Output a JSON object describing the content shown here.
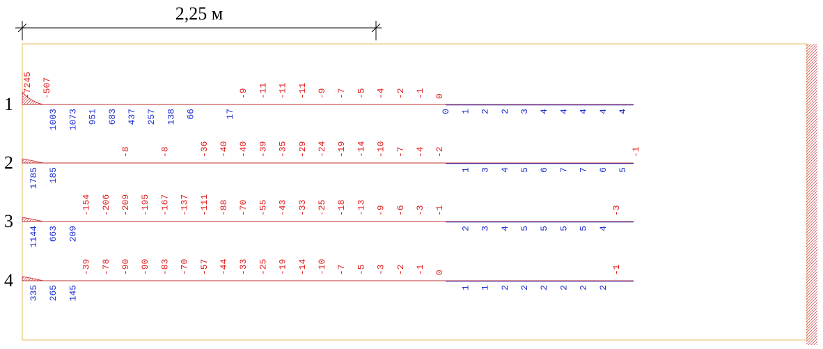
{
  "dimension": {
    "label": "2,25 м"
  },
  "rows": [
    {
      "label": "1",
      "negative": [
        -7245,
        -507,
        null,
        null,
        null,
        null,
        null,
        null,
        null,
        null,
        null,
        -9,
        -11,
        -11,
        -11,
        -9,
        -7,
        -5,
        -4,
        -2,
        -1,
        0,
        null,
        null,
        null,
        null,
        null,
        null,
        null,
        null,
        null,
        null
      ],
      "positive": [
        null,
        1003,
        1073,
        951,
        683,
        437,
        257,
        138,
        66,
        null,
        17,
        null,
        null,
        null,
        null,
        null,
        null,
        null,
        null,
        null,
        null,
        0,
        1,
        2,
        2,
        3,
        4,
        4,
        4,
        4,
        4,
        null
      ]
    },
    {
      "label": "2",
      "negative": [
        null,
        null,
        null,
        null,
        null,
        -8,
        null,
        -8,
        null,
        -36,
        -40,
        -40,
        -39,
        -35,
        -29,
        -24,
        -19,
        -14,
        -10,
        -7,
        -4,
        -2,
        null,
        null,
        null,
        null,
        null,
        null,
        null,
        null,
        null,
        -1
      ],
      "positive": [
        1785,
        185,
        null,
        null,
        null,
        null,
        null,
        null,
        null,
        null,
        null,
        null,
        null,
        null,
        null,
        null,
        null,
        null,
        null,
        null,
        null,
        null,
        1,
        3,
        4,
        5,
        6,
        7,
        7,
        6,
        5,
        null
      ]
    },
    {
      "label": "3",
      "negative": [
        null,
        null,
        null,
        -154,
        -206,
        -209,
        -195,
        -167,
        -137,
        -111,
        -88,
        -70,
        -55,
        -43,
        -33,
        -25,
        -18,
        -13,
        -9,
        -6,
        -3,
        -1,
        null,
        null,
        null,
        null,
        null,
        null,
        null,
        null,
        -3,
        null
      ],
      "positive": [
        1144,
        663,
        209,
        null,
        null,
        null,
        null,
        null,
        null,
        null,
        null,
        null,
        null,
        null,
        null,
        null,
        null,
        null,
        null,
        null,
        null,
        null,
        2,
        3,
        4,
        5,
        5,
        5,
        5,
        4,
        null,
        null
      ]
    },
    {
      "label": "4",
      "negative": [
        null,
        null,
        null,
        -39,
        -78,
        -90,
        -90,
        -83,
        -70,
        -57,
        -44,
        -33,
        -25,
        -19,
        -14,
        -10,
        -7,
        -5,
        -3,
        -2,
        -1,
        0,
        null,
        null,
        null,
        null,
        null,
        null,
        null,
        null,
        -1,
        null
      ],
      "positive": [
        335,
        265,
        145,
        null,
        null,
        null,
        null,
        null,
        null,
        null,
        null,
        null,
        null,
        null,
        null,
        null,
        null,
        null,
        null,
        null,
        null,
        null,
        1,
        1,
        2,
        2,
        2,
        2,
        2,
        2,
        null,
        null
      ]
    }
  ]
}
